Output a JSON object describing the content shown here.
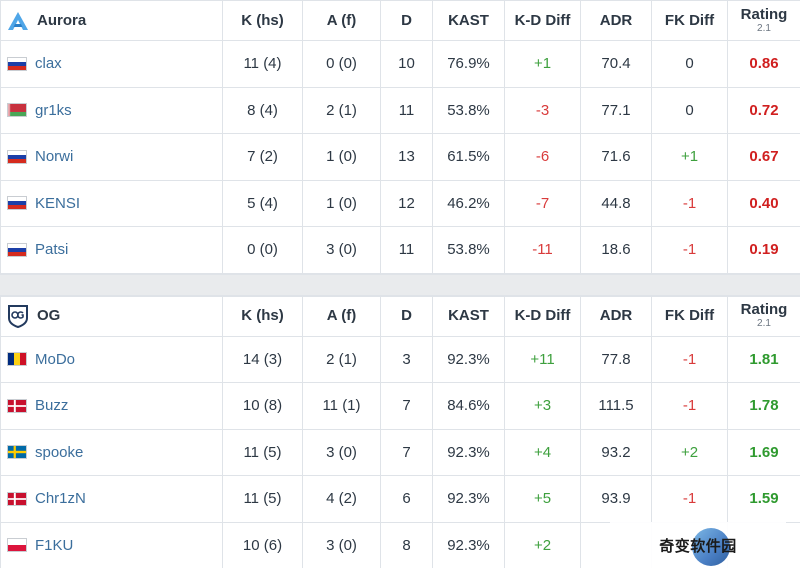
{
  "columns": [
    "K (hs)",
    "A (f)",
    "D",
    "KAST",
    "K-D Diff",
    "ADR",
    "FK Diff",
    "Rating"
  ],
  "rating_version": "2.1",
  "teams": [
    {
      "name": "Aurora",
      "logo_icon": "aurora-logo-icon",
      "players": [
        {
          "name": "clax",
          "flag": "russia",
          "k": "11 (4)",
          "a": "0 (0)",
          "d": "10",
          "kast": "76.9%",
          "kd": "+1",
          "kd_sign": "pos",
          "adr": "70.4",
          "fk": "0",
          "fk_sign": "neu",
          "rating": "0.86",
          "rating_sign": "bad"
        },
        {
          "name": "gr1ks",
          "flag": "belarus",
          "k": "8 (4)",
          "a": "2 (1)",
          "d": "11",
          "kast": "53.8%",
          "kd": "-3",
          "kd_sign": "neg",
          "adr": "77.1",
          "fk": "0",
          "fk_sign": "neu",
          "rating": "0.72",
          "rating_sign": "bad"
        },
        {
          "name": "Norwi",
          "flag": "russia",
          "k": "7 (2)",
          "a": "1 (0)",
          "d": "13",
          "kast": "61.5%",
          "kd": "-6",
          "kd_sign": "neg",
          "adr": "71.6",
          "fk": "+1",
          "fk_sign": "pos",
          "rating": "0.67",
          "rating_sign": "bad"
        },
        {
          "name": "KENSI",
          "flag": "russia",
          "k": "5 (4)",
          "a": "1 (0)",
          "d": "12",
          "kast": "46.2%",
          "kd": "-7",
          "kd_sign": "neg",
          "adr": "44.8",
          "fk": "-1",
          "fk_sign": "neg",
          "rating": "0.40",
          "rating_sign": "bad"
        },
        {
          "name": "Patsi",
          "flag": "russia",
          "k": "0 (0)",
          "a": "3 (0)",
          "d": "11",
          "kast": "53.8%",
          "kd": "-11",
          "kd_sign": "neg",
          "adr": "18.6",
          "fk": "-1",
          "fk_sign": "neg",
          "rating": "0.19",
          "rating_sign": "bad"
        }
      ]
    },
    {
      "name": "OG",
      "logo_icon": "og-logo-icon",
      "players": [
        {
          "name": "MoDo",
          "flag": "romania",
          "k": "14 (3)",
          "a": "2 (1)",
          "d": "3",
          "kast": "92.3%",
          "kd": "+11",
          "kd_sign": "pos",
          "adr": "77.8",
          "fk": "-1",
          "fk_sign": "neg",
          "rating": "1.81",
          "rating_sign": "good"
        },
        {
          "name": "Buzz",
          "flag": "denmark",
          "k": "10 (8)",
          "a": "11 (1)",
          "d": "7",
          "kast": "84.6%",
          "kd": "+3",
          "kd_sign": "pos",
          "adr": "111.5",
          "fk": "-1",
          "fk_sign": "neg",
          "rating": "1.78",
          "rating_sign": "good"
        },
        {
          "name": "spooke",
          "flag": "sweden",
          "k": "11 (5)",
          "a": "3 (0)",
          "d": "7",
          "kast": "92.3%",
          "kd": "+4",
          "kd_sign": "pos",
          "adr": "93.2",
          "fk": "+2",
          "fk_sign": "pos",
          "rating": "1.69",
          "rating_sign": "good"
        },
        {
          "name": "Chr1zN",
          "flag": "denmark",
          "k": "11 (5)",
          "a": "4 (2)",
          "d": "6",
          "kast": "92.3%",
          "kd": "+5",
          "kd_sign": "pos",
          "adr": "93.9",
          "fk": "-1",
          "fk_sign": "neg",
          "rating": "1.59",
          "rating_sign": "good"
        },
        {
          "name": "F1KU",
          "flag": "poland",
          "k": "10 (6)",
          "a": "3 (0)",
          "d": "8",
          "kast": "92.3%",
          "kd": "+2",
          "kd_sign": "pos",
          "adr": "",
          "fk": "",
          "fk_sign": "neu",
          "rating": "",
          "rating_sign": "good"
        }
      ]
    }
  ],
  "watermark": {
    "text": "奇变软件园"
  },
  "colors": {
    "positive": "#3ea03e",
    "negative": "#d93b3b",
    "rating_good": "#2f9a2f",
    "rating_bad": "#d01f1f",
    "player_link": "#3b6e9c"
  }
}
